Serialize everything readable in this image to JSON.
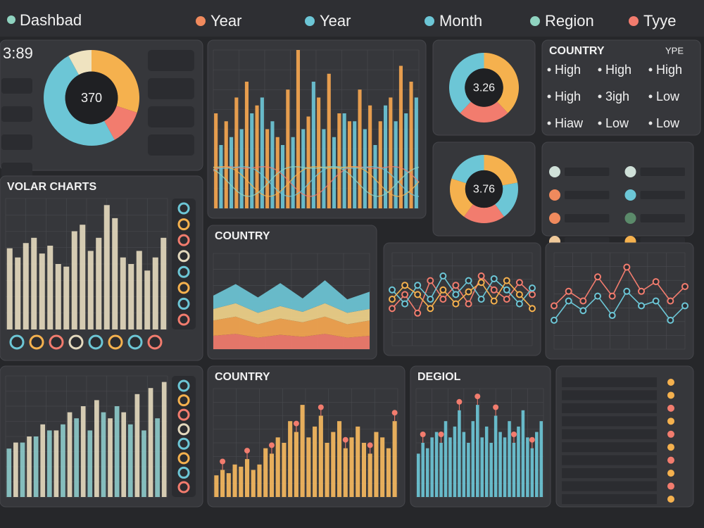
{
  "header": {
    "title": "Dashbad",
    "filters": [
      {
        "label": "Year",
        "color": "#f08a5d"
      },
      {
        "label": "Year",
        "color": "#6cc6d6"
      },
      {
        "label": "Month",
        "color": "#6cc6d6"
      },
      {
        "label": "Region",
        "color": "#8fd3c0"
      },
      {
        "label": "Tyye",
        "color": "#f27c6e"
      }
    ]
  },
  "panels": [
    {
      "type": "donut",
      "stat": "3:89",
      "center": "370",
      "values": [
        30,
        12,
        50,
        8
      ],
      "colors": [
        "#f5b14e",
        "#f27c6e",
        "#6cc6d6",
        "#efe3c0"
      ]
    },
    {
      "type": "bars",
      "ylim": [
        0,
        100
      ],
      "waves": true,
      "series": [
        {
          "color": "#f5a650",
          "values": [
            60,
            55,
            70,
            80,
            65,
            50,
            45,
            75,
            100,
            58,
            70,
            85,
            60,
            55,
            75,
            65,
            55,
            70,
            90,
            80
          ]
        },
        {
          "color": "#6cc6d6",
          "values": [
            40,
            45,
            50,
            60,
            70,
            55,
            40,
            45,
            50,
            80,
            50,
            45,
            60,
            55,
            50,
            40,
            65,
            55,
            60,
            70
          ]
        }
      ]
    },
    {
      "type": "donut",
      "center": "3.26",
      "values": [
        38,
        24,
        38
      ],
      "colors": [
        "#f5b14e",
        "#f27c6e",
        "#6cc6d6"
      ]
    },
    {
      "type": "table",
      "title": "COUNTRY",
      "header": "YPE",
      "rows": [
        [
          "High",
          "High",
          "High"
        ],
        [
          "High",
          "3igh",
          "Low"
        ],
        [
          "Hiaw",
          "Low",
          "Low"
        ]
      ]
    },
    {
      "type": "donut",
      "center": "3.76",
      "values": [
        22,
        18,
        20,
        20,
        20
      ],
      "colors": [
        "#f5b14e",
        "#6cc6d6",
        "#f27c6e",
        "#f5b14e",
        "#6cc6d6"
      ]
    },
    {
      "type": "list",
      "colors": [
        "#cfe0d8",
        "#f08a5d",
        "#f08a5d",
        "#f0c99a",
        "#cfe0d8",
        "#6cc6d6",
        "#5b8a6a",
        "#f5b14e"
      ]
    },
    {
      "type": "bars",
      "title": "VOLAR CHARTS",
      "ylim": [
        0,
        100
      ],
      "buttons": true,
      "series": [
        {
          "color": "#e3d8bd",
          "values": [
            62,
            55,
            66,
            70,
            58,
            64,
            50,
            48,
            75,
            80,
            60,
            70,
            95,
            85,
            55,
            50,
            60,
            45,
            55,
            70
          ]
        }
      ]
    },
    {
      "type": "area",
      "title": "COUNTRY",
      "ylim": [
        0,
        100
      ],
      "series": [
        {
          "color": "#f27c6e",
          "values": [
            14,
            16,
            12,
            15,
            13,
            16,
            12,
            14
          ]
        },
        {
          "color": "#f5a650",
          "values": [
            16,
            18,
            14,
            17,
            15,
            18,
            14,
            16
          ]
        },
        {
          "color": "#f0d28a",
          "values": [
            12,
            14,
            12,
            13,
            11,
            14,
            12,
            12
          ]
        },
        {
          "color": "#6cc6d6",
          "values": [
            14,
            20,
            16,
            24,
            14,
            24,
            14,
            18
          ]
        }
      ]
    },
    {
      "type": "line",
      "ylim": [
        0,
        100
      ],
      "series": [
        {
          "color": "#f27c6e",
          "values": [
            40,
            55,
            35,
            70,
            50,
            65,
            45,
            75,
            60,
            50,
            68,
            55
          ]
        },
        {
          "color": "#6cc6d6",
          "values": [
            60,
            45,
            65,
            50,
            75,
            55,
            70,
            50,
            72,
            60,
            45,
            62
          ]
        },
        {
          "color": "#f5b14e",
          "values": [
            50,
            65,
            55,
            40,
            60,
            45,
            58,
            68,
            48,
            70,
            55,
            40
          ]
        }
      ]
    },
    {
      "type": "line",
      "ylim": [
        0,
        100
      ],
      "series": [
        {
          "color": "#f27c6e",
          "values": [
            45,
            60,
            50,
            75,
            55,
            85,
            60,
            70,
            50,
            65
          ]
        },
        {
          "color": "#6cc6d6",
          "values": [
            30,
            50,
            40,
            55,
            35,
            60,
            45,
            50,
            30,
            45
          ]
        }
      ]
    },
    {
      "type": "bars",
      "ylim": [
        0,
        100
      ],
      "buttons": true,
      "series": [
        {
          "color": "#8cc9c9",
          "values": [
            40,
            45,
            50,
            55,
            60,
            65,
            55,
            70,
            75,
            60,
            55,
            65
          ]
        },
        {
          "color": "#e3d8bd",
          "values": [
            45,
            50,
            60,
            55,
            70,
            75,
            80,
            65,
            70,
            85,
            90,
            95
          ]
        }
      ]
    },
    {
      "type": "bars",
      "title": "COUNTRY",
      "ylim": [
        0,
        100
      ],
      "markers": "#f27c6e",
      "series": [
        {
          "color": "#f5b860",
          "values": [
            20,
            25,
            22,
            30,
            28,
            35,
            25,
            30,
            45,
            40,
            55,
            50,
            70,
            60,
            85,
            55,
            65,
            75,
            50,
            60,
            70,
            45,
            55,
            65,
            50,
            40,
            60,
            55,
            45,
            70
          ]
        }
      ]
    },
    {
      "type": "bars",
      "title": "DEGIOL",
      "ylim": [
        0,
        100
      ],
      "markers": "#f27c6e",
      "series": [
        {
          "color": "#6cc6d6",
          "values": [
            40,
            50,
            45,
            55,
            60,
            50,
            70,
            55,
            65,
            80,
            60,
            50,
            70,
            85,
            55,
            65,
            50,
            75,
            60,
            55,
            70,
            50,
            65,
            80,
            55,
            45,
            60,
            70
          ]
        }
      ]
    },
    {
      "type": "list",
      "colors": [
        "#f5b14e",
        "#f5b14e",
        "#f27c6e",
        "#f5b14e",
        "#f27c6e",
        "#f5b14e",
        "#f27c6e",
        "#f5b14e",
        "#f27c6e",
        "#f5b14e"
      ]
    }
  ]
}
